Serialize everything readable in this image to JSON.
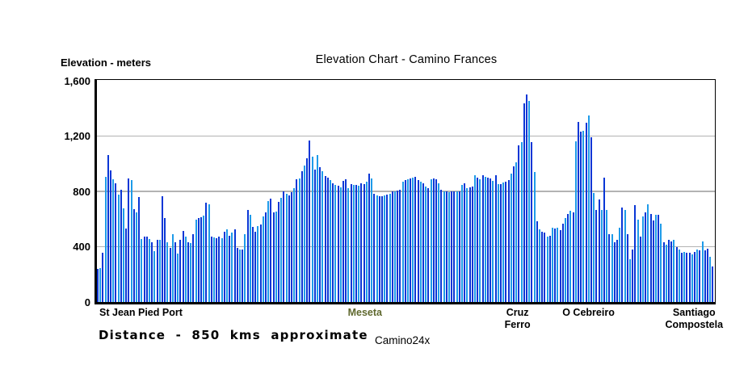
{
  "title": "Elevation Chart - Camino Frances",
  "y_axis": {
    "label": "Elevation - meters"
  },
  "footer": {
    "distance_note": "Distance - 850 kms approximate",
    "credit": "Camino24x"
  },
  "chart_data": {
    "type": "bar",
    "title": "Elevation Chart - Camino Frances",
    "ylabel": "Elevation - meters",
    "xlabel": "",
    "ylim": [
      0,
      1600
    ],
    "ytick_values": [
      0,
      400,
      800,
      1200,
      1600
    ],
    "ytick_labels": [
      "0",
      "400",
      "800",
      "1,200",
      "1,600"
    ],
    "grid": "horizontal-gray",
    "bar_colors": {
      "dark": "#0936d6",
      "light": "#1e9be9"
    },
    "light_bar_mod": {
      "modulus": 7,
      "remainders": [
        1,
        3,
        6
      ]
    },
    "x_landmarks": [
      {
        "lines": [
          "St Jean Pied Port"
        ],
        "x_frac": 0.004,
        "align": "left",
        "color": "#000000"
      },
      {
        "lines": [
          "Meseta"
        ],
        "x_frac": 0.434,
        "align": "center",
        "color": "#5f682e"
      },
      {
        "lines": [
          "Cruz",
          "Ferro"
        ],
        "x_frac": 0.681,
        "align": "center",
        "color": "#000000"
      },
      {
        "lines": [
          "O Cebreiro"
        ],
        "x_frac": 0.796,
        "align": "center",
        "color": "#000000"
      },
      {
        "lines": [
          "Santiago",
          "Compostela"
        ],
        "x_frac": 0.967,
        "align": "center",
        "color": "#000000"
      }
    ],
    "values": [
      240,
      245,
      355,
      905,
      1060,
      950,
      885,
      860,
      775,
      810,
      675,
      530,
      890,
      880,
      670,
      650,
      760,
      455,
      470,
      470,
      455,
      430,
      370,
      447,
      447,
      762,
      604,
      430,
      388,
      488,
      430,
      352,
      449,
      513,
      473,
      430,
      425,
      489,
      592,
      605,
      611,
      623,
      716,
      706,
      470,
      464,
      459,
      472,
      459,
      505,
      527,
      481,
      500,
      525,
      393,
      378,
      381,
      487,
      666,
      631,
      545,
      506,
      549,
      559,
      617,
      646,
      728,
      747,
      650,
      656,
      721,
      750,
      797,
      780,
      770,
      791,
      820,
      886,
      892,
      945,
      984,
      1036,
      1165,
      1048,
      955,
      1062,
      974,
      945,
      908,
      896,
      878,
      857,
      848,
      841,
      828,
      873,
      886,
      820,
      851,
      848,
      845,
      842,
      858,
      852,
      868,
      926,
      891,
      780,
      770,
      765,
      762,
      770,
      775,
      780,
      799,
      801,
      805,
      810,
      868,
      878,
      886,
      895,
      899,
      903,
      880,
      870,
      860,
      835,
      825,
      888,
      893,
      885,
      855,
      810,
      800,
      798,
      795,
      798,
      800,
      798,
      800,
      848,
      858,
      825,
      830,
      833,
      913,
      900,
      888,
      915,
      903,
      897,
      890,
      873,
      913,
      850,
      852,
      865,
      867,
      880,
      925,
      978,
      1009,
      1130,
      1153,
      1432,
      1500,
      1451,
      1153,
      937,
      585,
      522,
      507,
      499,
      475,
      478,
      536,
      528,
      536,
      517,
      565,
      605,
      634,
      657,
      645,
      1158,
      1300,
      1228,
      1237,
      1295,
      1348,
      1190,
      790,
      663,
      740,
      663,
      897,
      663,
      488,
      492,
      433,
      449,
      536,
      682,
      663,
      492,
      312,
      381,
      702,
      595,
      470,
      620,
      645,
      706,
      634,
      589,
      628,
      628,
      565,
      429,
      413,
      447,
      435,
      450,
      394,
      377,
      355,
      361,
      353,
      355,
      342,
      361,
      377,
      373,
      440,
      371,
      383,
      325,
      255
    ]
  }
}
